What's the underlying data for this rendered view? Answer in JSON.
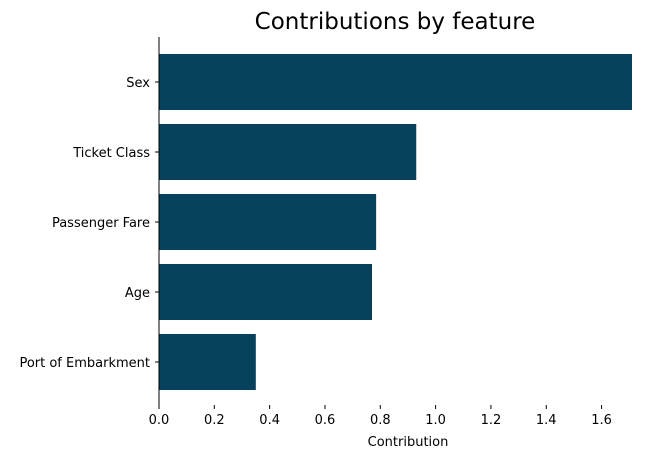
{
  "chart_data": {
    "type": "bar",
    "orientation": "horizontal",
    "title": "Contributions by feature",
    "xlabel": "Contribution",
    "ylabel": "",
    "categories": [
      "Sex",
      "Ticket Class",
      "Passenger Fare",
      "Age",
      "Port of Embarkment"
    ],
    "values": [
      1.71,
      0.93,
      0.785,
      0.77,
      0.35
    ],
    "xlim": [
      0,
      1.71
    ],
    "xticks": [
      0.0,
      0.2,
      0.4,
      0.6,
      0.8,
      1.0,
      1.2,
      1.4,
      1.6
    ],
    "xtick_labels": [
      "0.0",
      "0.2",
      "0.4",
      "0.6",
      "0.8",
      "1.0",
      "1.2",
      "1.4",
      "1.6"
    ],
    "grid": false,
    "legend": "none",
    "bar_color": "#08415c"
  }
}
